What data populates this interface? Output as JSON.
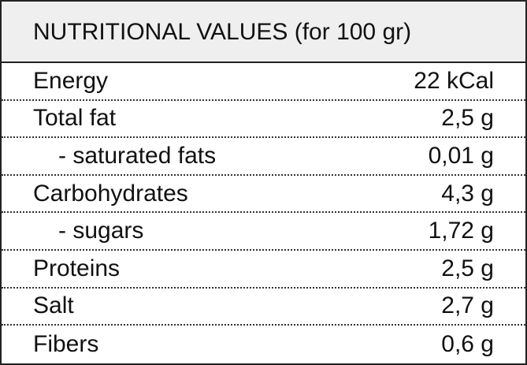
{
  "header": {
    "title": "NUTRITIONAL VALUES (for 100 gr)"
  },
  "table": {
    "rows": [
      [
        "Energy",
        "22 kCal"
      ],
      [
        "Total fat",
        "2,5 g"
      ],
      [
        "- saturated fats",
        "0,01 g"
      ],
      [
        "Carbohydrates",
        "4,3 g"
      ],
      [
        "- sugars",
        "1,72 g"
      ],
      [
        "Proteins",
        "2,5 g"
      ],
      [
        "Salt",
        "2,7 g"
      ],
      [
        "Fibers",
        "0,6 g"
      ]
    ]
  }
}
